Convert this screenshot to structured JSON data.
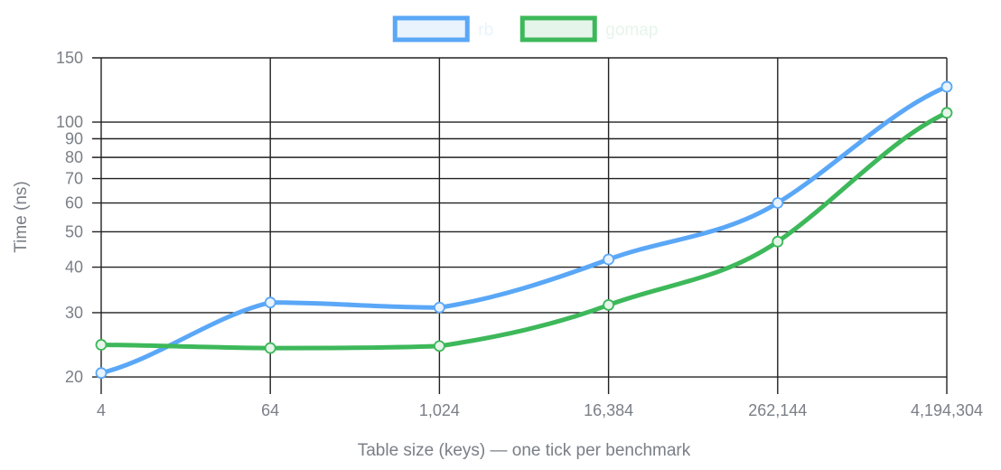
{
  "chart_data": {
    "type": "line",
    "xlabel": "Table size (keys) — one tick per benchmark",
    "ylabel": "Time (ns)",
    "y_scale": "log",
    "ylim": [
      19,
      150
    ],
    "y_ticks": [
      20,
      30,
      40,
      50,
      60,
      70,
      80,
      90,
      100,
      150
    ],
    "y_tick_labels": [
      "20",
      "30",
      "40",
      "50",
      "60",
      "70",
      "80",
      "90",
      "100",
      "150"
    ],
    "categories": [
      "4",
      "64",
      "1,024",
      "16,384",
      "262,144",
      "4,194,304"
    ],
    "grid": true,
    "legend_position": "top",
    "series": [
      {
        "name": "rb",
        "color": "#5aa7f7",
        "fill": "#e8f3fd",
        "values": [
          20.5,
          32,
          31,
          42,
          60,
          125
        ]
      },
      {
        "name": "gomap",
        "color": "#3db85a",
        "fill": "#e6f5ea",
        "values": [
          24.5,
          24,
          24.3,
          31.5,
          47,
          106
        ]
      }
    ]
  }
}
